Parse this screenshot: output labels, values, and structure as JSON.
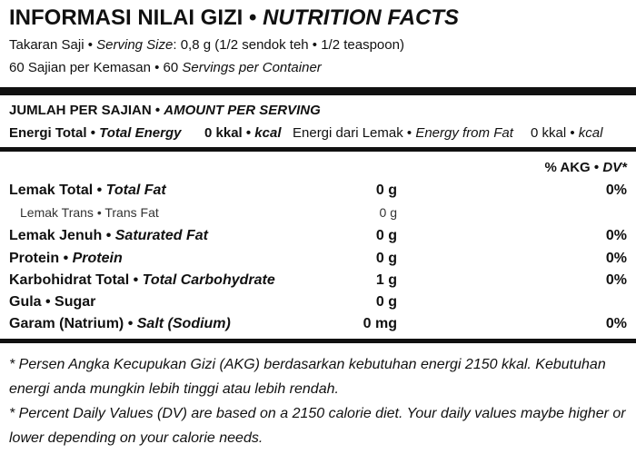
{
  "header": {
    "title": "INFORMASI NILAI GIZI •",
    "title_en": "NUTRITION FACTS",
    "serving_size": [
      "Takaran Saji • ",
      "Serving Size",
      ": 0,8 g (1/2 sendok teh • 1/2 teaspoon)"
    ],
    "servings": [
      "60 Sajian per Kemasan • 60 ",
      "Servings per Container"
    ]
  },
  "amount": {
    "heading": [
      "JUMLAH PER SAJIAN • ",
      "AMOUNT PER SERVING"
    ],
    "energy": [
      "Energi Total • ",
      "Total Energy",
      "0 kkal • ",
      "kcal",
      "Energi dari Lemak • ",
      "Energy from Fat",
      "0 kkal • ",
      "kcal"
    ]
  },
  "table": {
    "dv_header": [
      "% AKG • ",
      "DV*"
    ],
    "rows": [
      {
        "name": "Lemak Total • ",
        "name_en": "Total Fat",
        "amount": "0 g",
        "dv": "0%"
      },
      {
        "name": "Lemak Trans • ",
        "name_en": "Trans Fat",
        "amount": "0 g"
      },
      {
        "name": "Lemak Jenuh • ",
        "name_en": "Saturated Fat",
        "amount": "0 g",
        "dv": "0%"
      },
      {
        "name": "Protein • ",
        "name_en": "Protein",
        "amount": "0 g",
        "dv": "0%"
      },
      {
        "name": "Karbohidrat Total • ",
        "name_en": "Total Carbohydrate",
        "amount": "1 g",
        "dv": "0%"
      },
      {
        "name": "Gula • Sugar",
        "amount": "0 g"
      },
      {
        "name": "Garam (Natrium) • ",
        "name_en": "Salt (Sodium)",
        "amount": "0 mg",
        "dv": "0%"
      }
    ]
  },
  "footnotes": [
    "* Persen Angka Kecupukan Gizi (AKG) berdasarkan kebutuhan energi 2150 kkal. Kebutuhan energi anda mungkin lebih tinggi atau lebih rendah.",
    "* Percent Daily Values (DV) are based on a 2150 calorie diet. Your daily values maybe higher or lower depending on your calorie needs."
  ]
}
